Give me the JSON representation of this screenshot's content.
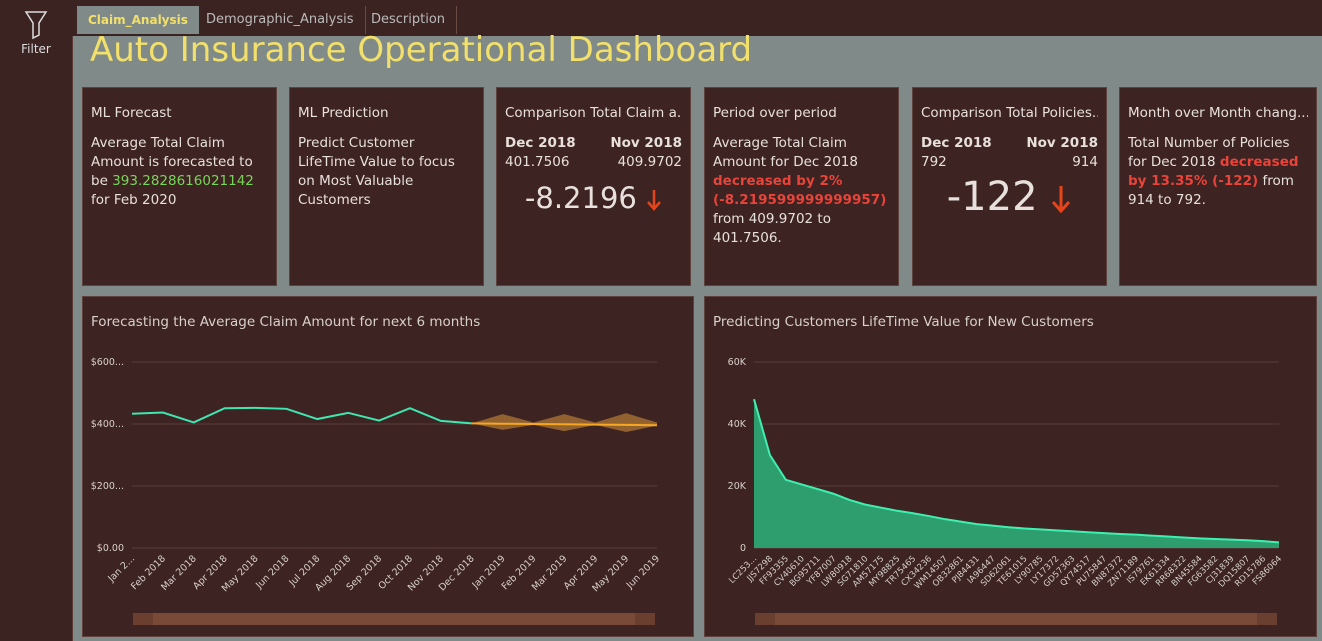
{
  "sidebar": {
    "label": "Filter"
  },
  "tabs": [
    "Claim_Analysis",
    "Demographic_Analysis",
    "Description"
  ],
  "title": "Auto Insurance Operational Dashboard",
  "cards": [
    {
      "title": "ML Forecast",
      "text_before": "Average Total Claim Amount is forecasted to be ",
      "highlight": "393.2828616021142",
      "text_after": " for Feb 2020"
    },
    {
      "title": "ML Prediction",
      "text": "Predict Customer LifeTime Value to focus on Most Valuable Customers"
    },
    {
      "title": "Comparison Total Claim a...",
      "current_label": "Dec 2018",
      "current_value": "401.7506",
      "previous_label": "Nov 2018",
      "previous_value": "409.9702",
      "difference": "-8.2196"
    },
    {
      "title": "Period over period",
      "text_before": "Average Total Claim Amount for Dec 2018 ",
      "highlight": "decreased by 2% (-8.219599999999957)",
      "text_after": " from 409.9702 to 401.7506."
    },
    {
      "title": "Comparison Total Policies...",
      "current_label": "Dec 2018",
      "current_value": "792",
      "previous_label": "Nov 2018",
      "previous_value": "914",
      "difference": "-122"
    },
    {
      "title": "Month over Month chang...",
      "text_before": "Total Number of Policies for Dec 2018 ",
      "highlight": "decreased by 13.35% (-122)",
      "text_after": " from 914 to 792."
    }
  ],
  "charts": [
    {
      "type": "line",
      "title": "Forecasting the Average Claim Amount for next 6 months",
      "categories": [
        "Jan 2...",
        "Feb 2018",
        "Mar 2018",
        "Apr 2018",
        "May 2018",
        "Jun 2018",
        "Jul 2018",
        "Aug 2018",
        "Sep 2018",
        "Oct 2018",
        "Nov 2018",
        "Dec 2018",
        "Jan 2019",
        "Feb 2019",
        "Mar 2019",
        "Apr 2019",
        "May 2019",
        "Jun 2019"
      ],
      "series": [
        {
          "color": "#3de8b0",
          "values": [
            433,
            437,
            405,
            451,
            452,
            449,
            416,
            436,
            411,
            451,
            410,
            402,
            null,
            null,
            null,
            null,
            null,
            null
          ]
        },
        {
          "color": "#f5a623",
          "values": [
            null,
            null,
            null,
            null,
            null,
            null,
            null,
            null,
            null,
            null,
            null,
            402,
            401,
            400,
            399,
            398,
            397,
            396
          ]
        }
      ],
      "band": {
        "color": "#c98a3a",
        "upper": [
          null,
          null,
          null,
          null,
          null,
          null,
          null,
          null,
          null,
          null,
          null,
          402,
          432,
          405,
          432,
          405,
          435,
          405
        ],
        "lower": [
          null,
          null,
          null,
          null,
          null,
          null,
          null,
          null,
          null,
          null,
          null,
          402,
          381,
          397,
          377,
          397,
          374,
          395
        ]
      },
      "ylim": [
        0,
        600
      ],
      "yticks": [
        {
          "value": 0,
          "label": "$0.00"
        },
        {
          "value": 200,
          "label": "$200..."
        },
        {
          "value": 400,
          "label": "$400..."
        },
        {
          "value": 600,
          "label": "$600..."
        }
      ],
      "grid": true
    },
    {
      "type": "area",
      "title": "Predicting Customers LifeTime Value for New Customers",
      "categories": [
        "LC253...",
        "JJS7298",
        "FF93355",
        "CV40610",
        "BG95711",
        "YF87007",
        "LW80918",
        "SG71810",
        "AM57175",
        "MY98825",
        "TR75465",
        "CX34236",
        "WM14507",
        "OB32861",
        "PJ84431",
        "IA96447",
        "SD62061",
        "TE61015",
        "LY90785",
        "LY17372",
        "GD57363",
        "QY74517",
        "PU75847",
        "BN87372",
        "ZN71189",
        "IS79761",
        "EK61334",
        "RR68322",
        "BN45584",
        "FG63582",
        "CJ31839",
        "DQ15807",
        "RD15786",
        "FS86064"
      ],
      "series": [
        {
          "color": "#3ef0b0",
          "fill": "#2e9e6f",
          "values": [
            48000,
            30000,
            22000,
            20500,
            19000,
            17500,
            15500,
            14000,
            13000,
            12000,
            11200,
            10300,
            9300,
            8500,
            7700,
            7200,
            6700,
            6300,
            6000,
            5700,
            5400,
            5100,
            4800,
            4500,
            4300,
            4000,
            3700,
            3400,
            3100,
            2900,
            2700,
            2500,
            2200,
            1800
          ]
        }
      ],
      "ylim": [
        0,
        60000
      ],
      "yticks": [
        0,
        {
          "value": 20000,
          "label": "20K"
        },
        {
          "value": 40000,
          "label": "40K"
        },
        {
          "value": 60000,
          "label": "60K"
        }
      ],
      "grid": true
    }
  ]
}
